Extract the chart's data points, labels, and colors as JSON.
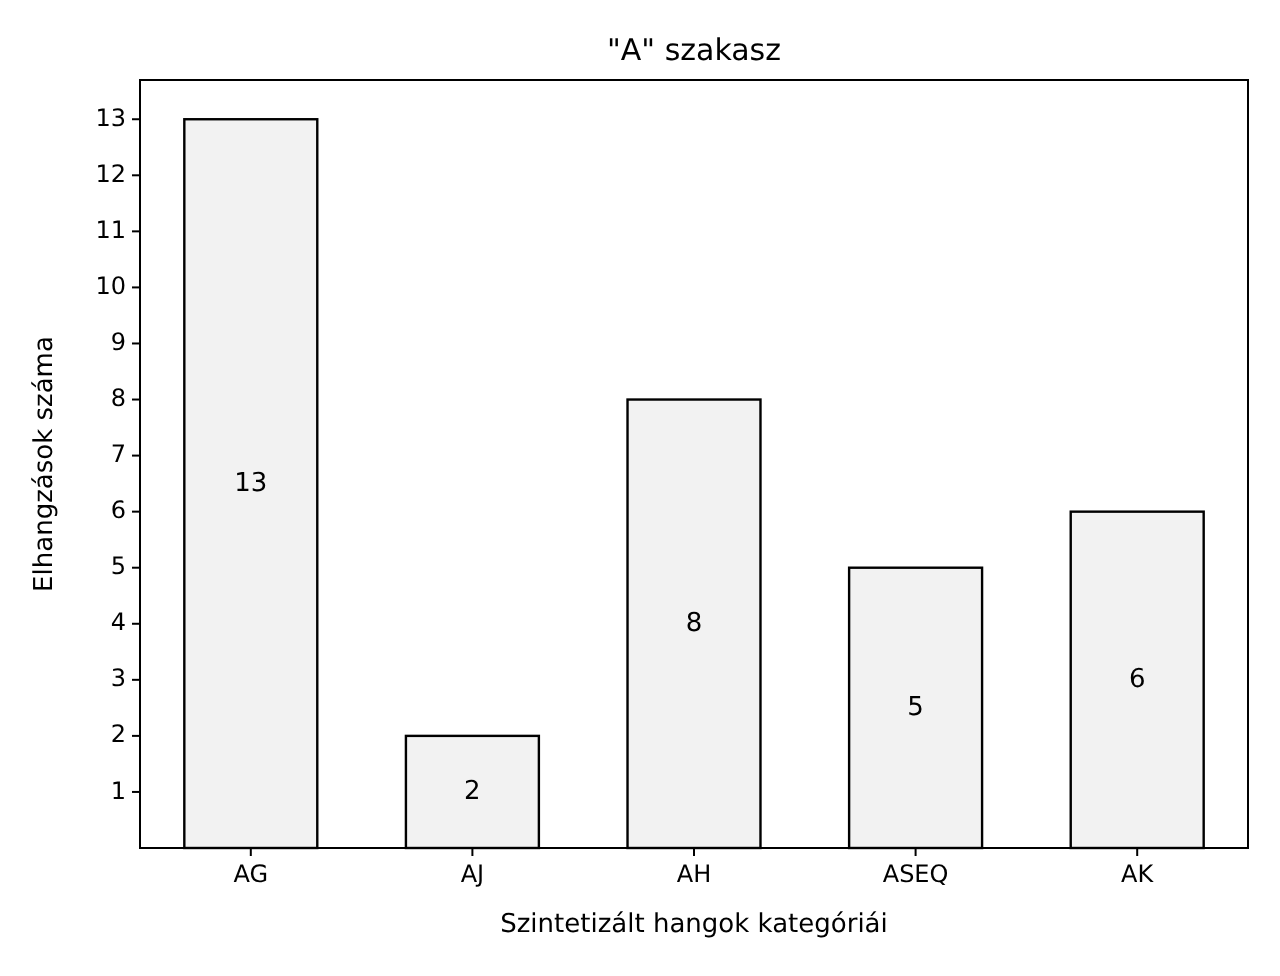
{
  "chart_data": {
    "type": "bar",
    "title": "\"A\" szakasz",
    "xlabel": "Szintetizált hangok kategóriái",
    "ylabel": "Elhangzások száma",
    "categories": [
      "AG",
      "AJ",
      "AH",
      "ASEQ",
      "AK"
    ],
    "values": [
      13,
      2,
      8,
      5,
      6
    ],
    "color": "#f2f2f2",
    "ylim": [
      0,
      13.7
    ],
    "yticks": [
      1,
      2,
      3,
      4,
      5,
      6,
      7,
      8,
      9,
      10,
      11,
      12,
      13
    ],
    "data_labels": true,
    "grid": false
  }
}
